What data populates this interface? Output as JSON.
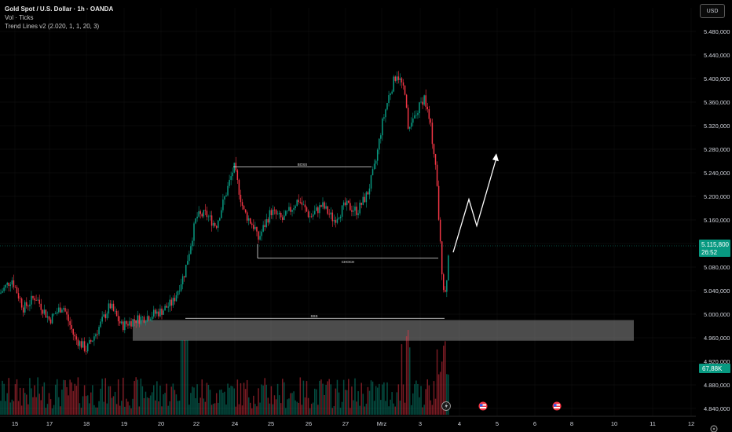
{
  "legend": {
    "symbol": "Gold Spot / U.S. Dollar · 1h · OANDA",
    "indicator_vol": "Vol · Ticks",
    "indicator_trend": "Trend Lines v2 (2.020, 1, 1, 20, 3)"
  },
  "currency_button": "USD",
  "price_axis": {
    "ticks": [
      "5.480,000",
      "5.440,000",
      "5.400,000",
      "5.360,000",
      "5.320,000",
      "5.280,000",
      "5.240,000",
      "5.200,000",
      "5.160,000",
      "5.120,000",
      "5.080,000",
      "5.040,000",
      "5.000,000",
      "4.960,000",
      "4.920,000",
      "4.880,000",
      "4.840,000"
    ],
    "current_price": "5.115,800",
    "countdown": "26:52",
    "volume_label": "67,88K",
    "colors": {
      "current": "#089981",
      "volume": "#089981"
    }
  },
  "time_axis": {
    "labels": [
      "15",
      "17",
      "18",
      "19",
      "20",
      "22",
      "24",
      "25",
      "26",
      "27",
      "Mrz",
      "3",
      "4",
      "5",
      "6",
      "8",
      "10",
      "11",
      "12"
    ]
  },
  "annotations": {
    "boss": "BOSS",
    "choch": "CHOCH",
    "sss": "SSS"
  },
  "chart_data": {
    "type": "candlestick",
    "y_range": [
      4830,
      5510
    ],
    "colors": {
      "up": "#089981",
      "down": "#f23645",
      "zone": "#9e9e9e"
    },
    "key_points": [
      {
        "x": "15",
        "price": 5035
      },
      {
        "x": "17",
        "price": 4985
      },
      {
        "x": "18",
        "price": 4935
      },
      {
        "x": "19",
        "price": 4995
      },
      {
        "x": "20",
        "price": 5010
      },
      {
        "x": "22",
        "price": 5160
      },
      {
        "x": "24",
        "price": 5250
      },
      {
        "x": "24",
        "price": 5175
      },
      {
        "x": "25",
        "price": 5125
      },
      {
        "x": "26",
        "price": 5185
      },
      {
        "x": "27",
        "price": 5180
      },
      {
        "x": "27",
        "price": 5250
      },
      {
        "x": "Mrz",
        "price": 5400
      },
      {
        "x": "3",
        "price": 5360
      },
      {
        "x": "3",
        "price": 5100
      },
      {
        "x": "3",
        "price": 5010
      },
      {
        "x": "3",
        "price": 5116
      }
    ],
    "demand_zone": [
      4955,
      4990
    ],
    "boss_level": 5250,
    "choch_level": 5095,
    "sss_level": 4993,
    "forecast_path": [
      5105,
      5195,
      5150,
      5265
    ]
  }
}
